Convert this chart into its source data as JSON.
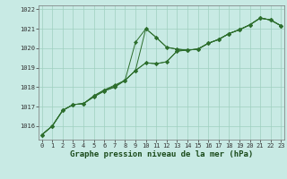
{
  "xlabel": "Graphe pression niveau de la mer (hPa)",
  "background_color": "#c8eae4",
  "grid_color": "#9fcfbf",
  "line_color": "#2d6e2d",
  "x_ticks": [
    0,
    1,
    2,
    3,
    4,
    5,
    6,
    7,
    8,
    9,
    10,
    11,
    12,
    13,
    14,
    15,
    16,
    17,
    18,
    19,
    20,
    21,
    22,
    23
  ],
  "y_ticks": [
    1016,
    1017,
    1018,
    1019,
    1020,
    1021,
    1022
  ],
  "ylim": [
    1015.3,
    1022.2
  ],
  "xlim": [
    -0.3,
    23.3
  ],
  "series": [
    [
      1015.55,
      1016.0,
      1016.8,
      1017.1,
      1017.15,
      1017.55,
      1017.85,
      1018.1,
      1018.35,
      1020.3,
      1021.0,
      1020.55,
      1020.05,
      1019.95,
      1019.9,
      1019.95,
      1020.25,
      1020.45,
      1020.75,
      1020.95,
      1021.2,
      1021.55,
      1021.45,
      1021.15
    ],
    [
      1015.55,
      1016.0,
      1016.8,
      1017.1,
      1017.15,
      1017.55,
      1017.85,
      1018.05,
      1018.35,
      1018.85,
      1019.25,
      1019.2,
      1019.3,
      1019.85,
      1019.9,
      1019.95,
      1020.25,
      1020.45,
      1020.75,
      1020.95,
      1021.2,
      1021.55,
      1021.45,
      1021.15
    ],
    [
      1015.55,
      1016.0,
      1016.8,
      1017.1,
      1017.15,
      1017.5,
      1017.8,
      1018.0,
      1018.35,
      1018.85,
      1019.25,
      1019.2,
      1019.3,
      1019.85,
      1019.9,
      1019.95,
      1020.25,
      1020.45,
      1020.75,
      1020.95,
      1021.2,
      1021.55,
      1021.45,
      1021.15
    ],
    [
      1015.55,
      1016.0,
      1016.8,
      1017.1,
      1017.15,
      1017.5,
      1017.8,
      1018.0,
      1018.35,
      1018.85,
      1021.0,
      1020.55,
      1020.05,
      1019.95,
      1019.9,
      1019.95,
      1020.25,
      1020.45,
      1020.75,
      1020.95,
      1021.2,
      1021.55,
      1021.45,
      1021.15
    ]
  ]
}
